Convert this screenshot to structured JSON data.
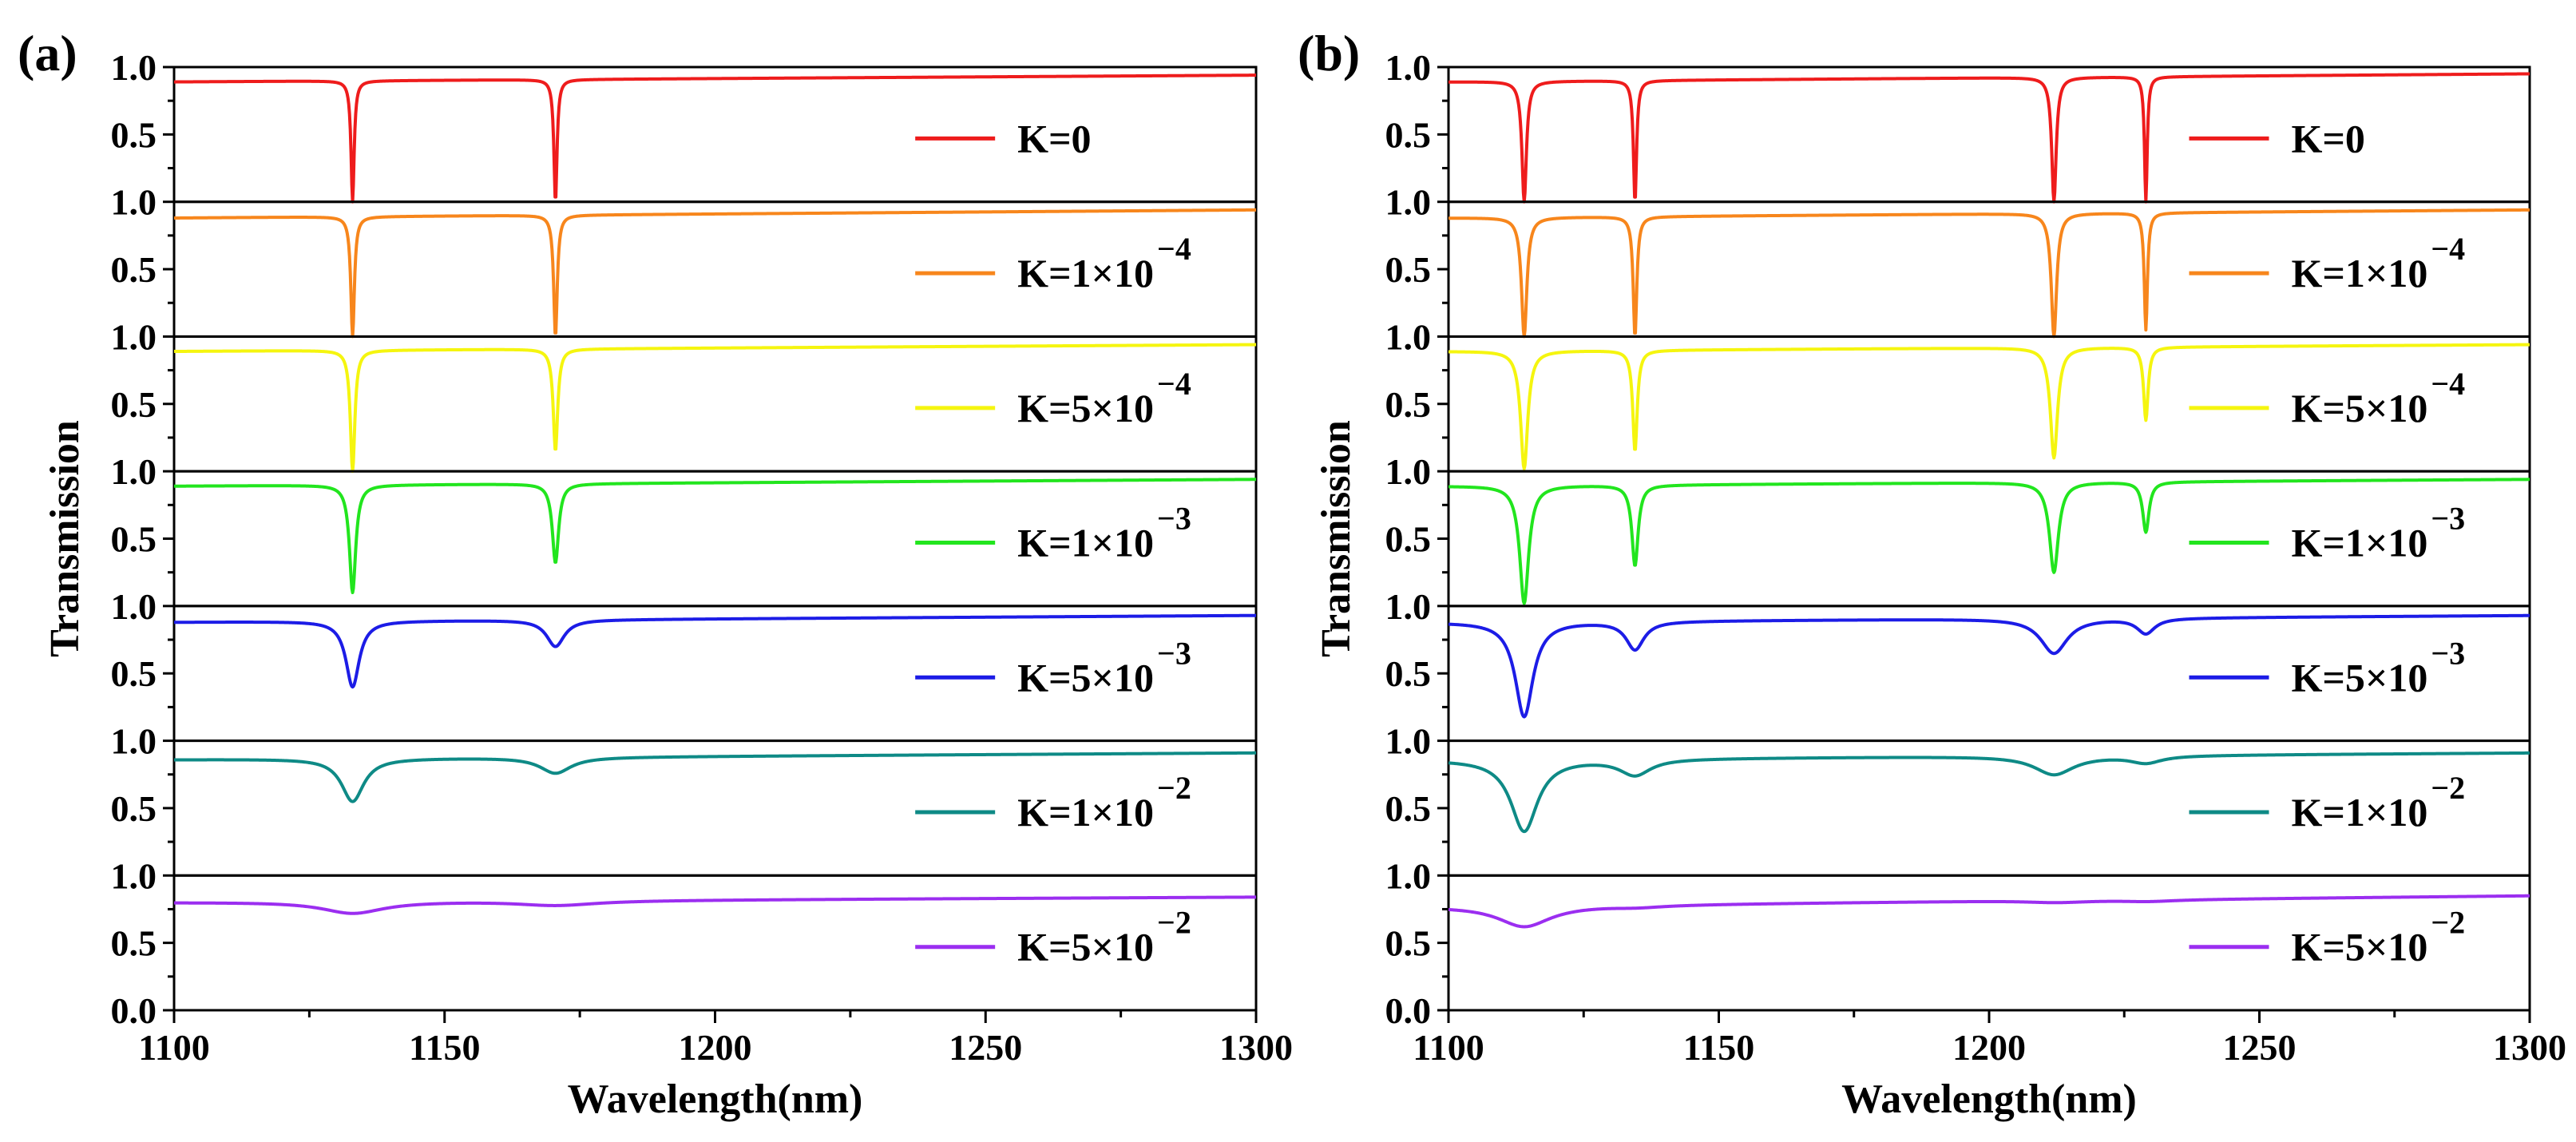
{
  "chart_data": [
    {
      "panel_label": "(a)",
      "type": "line",
      "xlabel": "Wavelength(nm)",
      "ylabel": "Transmission",
      "xlim": [
        1100,
        1300
      ],
      "x_ticks": [
        "1100",
        "1150",
        "1200",
        "1250",
        "1300"
      ],
      "stack_ylim": [
        0,
        1
      ],
      "y_ticks_top": [
        "1.0",
        "0.5"
      ],
      "y_ticks_bottom": [
        "1.0",
        "0.5",
        "0.0"
      ],
      "grid": false,
      "legend_position": "right of each sub-panel",
      "dips": [
        1133,
        1170.5
      ],
      "series": [
        {
          "name": "K=0",
          "legend_base": "K=0",
          "legend_exp": "",
          "color": "#ee1c1c",
          "baseline": [
            0.89,
            0.94
          ],
          "dip_mins": [
            0.0,
            0.0
          ],
          "dip_widths": [
            0.35,
            0.35
          ]
        },
        {
          "name": "K=1×10−4",
          "legend_base": "K=1×10",
          "legend_exp": "−4",
          "color": "#f7861c",
          "baseline": [
            0.88,
            0.94
          ],
          "dip_mins": [
            0.0,
            0.0
          ],
          "dip_widths": [
            0.4,
            0.4
          ]
        },
        {
          "name": "K=5×10−4",
          "legend_base": "K=5×10",
          "legend_exp": "−4",
          "color": "#f5f50f",
          "baseline": [
            0.89,
            0.94
          ],
          "dip_mins": [
            0.0,
            0.15
          ],
          "dip_widths": [
            0.5,
            0.5
          ]
        },
        {
          "name": "K=1×10−3",
          "legend_base": "K=1×10",
          "legend_exp": "−3",
          "color": "#22e51e",
          "baseline": [
            0.89,
            0.94
          ],
          "dip_mins": [
            0.1,
            0.32
          ],
          "dip_widths": [
            0.7,
            0.7
          ]
        },
        {
          "name": "K=5×10−3",
          "legend_base": "K=5×10",
          "legend_exp": "−3",
          "color": "#1c1ce6",
          "baseline": [
            0.88,
            0.93
          ],
          "dip_mins": [
            0.4,
            0.7
          ],
          "dip_widths": [
            1.5,
            2.0
          ]
        },
        {
          "name": "K=1×10−2",
          "legend_base": "K=1×10",
          "legend_exp": "−2",
          "color": "#0e8a86",
          "baseline": [
            0.86,
            0.91
          ],
          "dip_mins": [
            0.55,
            0.76
          ],
          "dip_widths": [
            2.5,
            3.5
          ]
        },
        {
          "name": "K=5×10−2",
          "legend_base": "K=5×10",
          "legend_exp": "−2",
          "color": "#9b2ef0",
          "baseline": [
            0.8,
            0.84
          ],
          "dip_mins": [
            0.72,
            0.78
          ],
          "dip_widths": [
            7,
            9
          ]
        }
      ]
    },
    {
      "panel_label": "(b)",
      "type": "line",
      "xlabel": "Wavelength(nm)",
      "ylabel": "Transmission",
      "xlim": [
        1100,
        1300
      ],
      "x_ticks": [
        "1100",
        "1150",
        "1200",
        "1250",
        "1300"
      ],
      "stack_ylim": [
        0,
        1
      ],
      "y_ticks_top": [
        "1.0",
        "0.5"
      ],
      "y_ticks_bottom": [
        "1.0",
        "0.5",
        "0.0"
      ],
      "grid": false,
      "legend_position": "right of each sub-panel",
      "dips": [
        1114,
        1134.5,
        1212,
        1229
      ],
      "series": [
        {
          "name": "K=0",
          "legend_base": "K=0",
          "legend_exp": "",
          "color": "#ee1c1c",
          "baseline": [
            0.89,
            0.95
          ],
          "dip_mins": [
            0.0,
            0.0,
            0.0,
            0.0
          ],
          "dip_widths": [
            0.5,
            0.35,
            0.5,
            0.3
          ]
        },
        {
          "name": "K=1×10−4",
          "legend_base": "K=1×10",
          "legend_exp": "−4",
          "color": "#f7861c",
          "baseline": [
            0.88,
            0.94
          ],
          "dip_mins": [
            0.0,
            0.0,
            0.0,
            0.05
          ],
          "dip_widths": [
            0.6,
            0.4,
            0.6,
            0.35
          ]
        },
        {
          "name": "K=5×10−4",
          "legend_base": "K=5×10",
          "legend_exp": "−4",
          "color": "#f5f50f",
          "baseline": [
            0.89,
            0.94
          ],
          "dip_mins": [
            0.02,
            0.15,
            0.1,
            0.38
          ],
          "dip_widths": [
            0.8,
            0.5,
            0.8,
            0.5
          ]
        },
        {
          "name": "K=1×10−3",
          "legend_base": "K=1×10",
          "legend_exp": "−3",
          "color": "#22e51e",
          "baseline": [
            0.89,
            0.94
          ],
          "dip_mins": [
            0.02,
            0.3,
            0.25,
            0.55
          ],
          "dip_widths": [
            1.0,
            0.7,
            1.0,
            0.7
          ]
        },
        {
          "name": "K=5×10−3",
          "legend_base": "K=5×10",
          "legend_exp": "−3",
          "color": "#1c1ce6",
          "baseline": [
            0.88,
            0.93
          ],
          "dip_mins": [
            0.18,
            0.68,
            0.65,
            0.8
          ],
          "dip_widths": [
            2.0,
            2.0,
            3.0,
            2.0
          ]
        },
        {
          "name": "K=1×10−2",
          "legend_base": "K=1×10",
          "legend_exp": "−2",
          "color": "#0e8a86",
          "baseline": [
            0.86,
            0.91
          ],
          "dip_mins": [
            0.33,
            0.75,
            0.75,
            0.84
          ],
          "dip_widths": [
            3.0,
            3.5,
            4.5,
            3.5
          ]
        },
        {
          "name": "K=5×10−2",
          "legend_base": "K=5×10",
          "legend_exp": "−2",
          "color": "#9b2ef0",
          "baseline": [
            0.77,
            0.85
          ],
          "dip_mins": [
            0.62,
            0.77,
            0.8,
            0.81
          ],
          "dip_widths": [
            6,
            6,
            7,
            6
          ]
        }
      ]
    }
  ]
}
